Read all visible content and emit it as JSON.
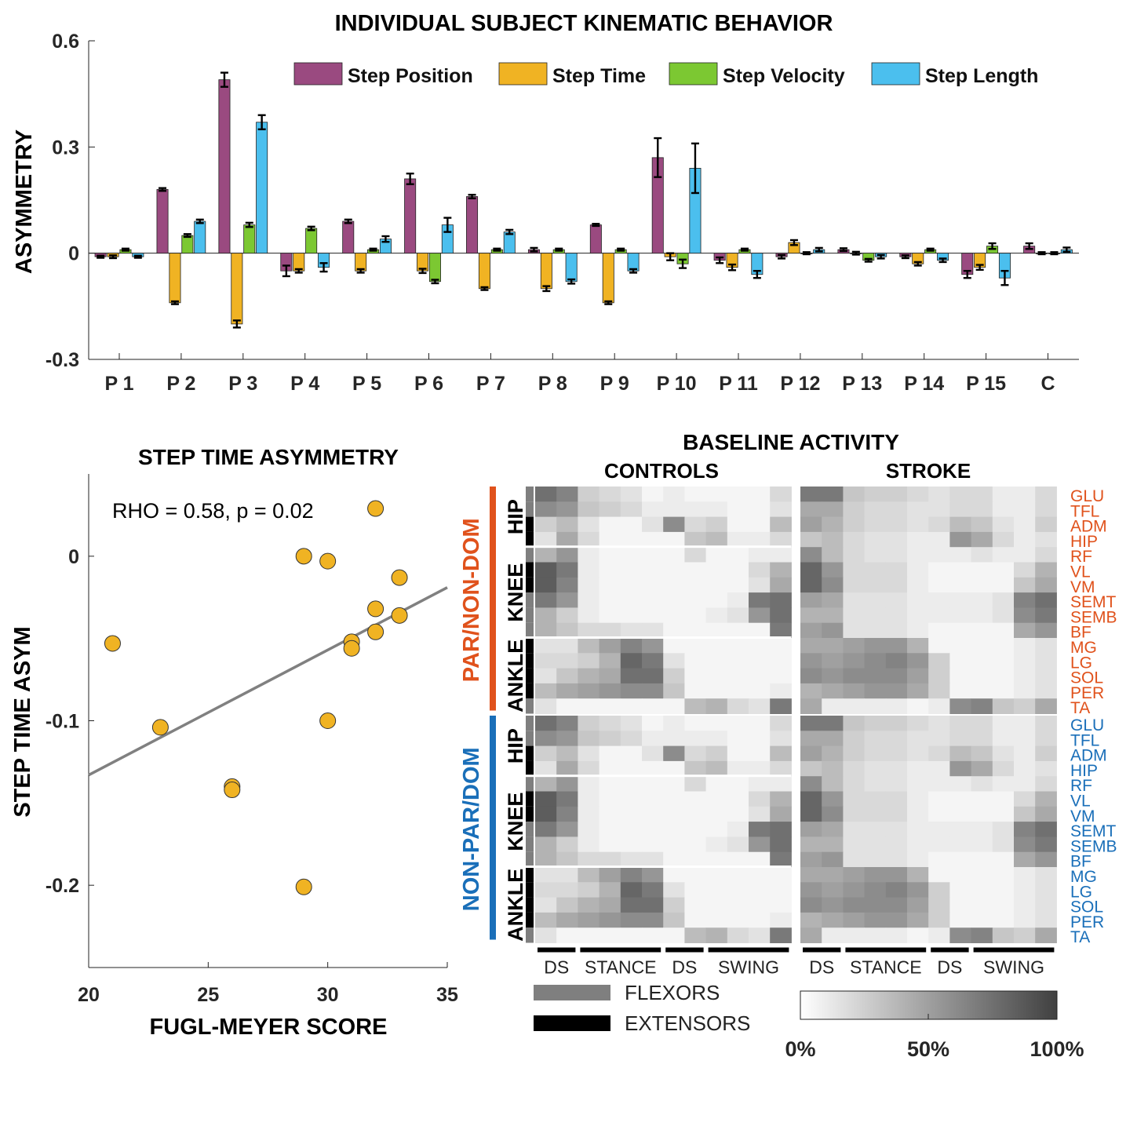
{
  "colors": {
    "step_position": "#9a4a80",
    "step_time": "#f0b323",
    "step_velocity": "#7cc832",
    "step_length": "#4bbfee",
    "paretic": "#e0521c",
    "nonparetic": "#1a6fb9",
    "flexor_bar": "#7f7f7f",
    "extensor_bar": "#000000",
    "fit_line": "#808080",
    "scatter_marker": "#f0b323"
  },
  "chart_data": [
    {
      "type": "bar",
      "title": "INDIVIDUAL SUBJECT KINEMATIC BEHAVIOR",
      "xlabel": "",
      "ylabel": "ASYMMETRY",
      "ylim": [
        -0.3,
        0.6
      ],
      "yticks": [
        "-0.3",
        "0",
        "0.3",
        "0.6"
      ],
      "categories": [
        "P 1",
        "P 2",
        "P 3",
        "P 4",
        "P 5",
        "P 6",
        "P 7",
        "P 8",
        "P 9",
        "P 10",
        "P 11",
        "P 12",
        "P 13",
        "P 14",
        "P 15",
        "C"
      ],
      "legend_placement": "top-right",
      "series": [
        {
          "name": "Step Position",
          "values": [
            -0.01,
            0.18,
            0.49,
            -0.05,
            0.09,
            0.21,
            0.16,
            0.01,
            0.08,
            0.27,
            -0.02,
            -0.01,
            0.01,
            -0.01,
            -0.06,
            0.02
          ],
          "errors": [
            0.003,
            0.004,
            0.02,
            0.015,
            0.005,
            0.015,
            0.005,
            0.005,
            0.003,
            0.055,
            0.008,
            0.005,
            0.004,
            0.004,
            0.01,
            0.008
          ]
        },
        {
          "name": "Step Time",
          "values": [
            -0.01,
            -0.14,
            -0.2,
            -0.05,
            -0.05,
            -0.05,
            -0.1,
            -0.1,
            -0.14,
            -0.01,
            -0.04,
            0.03,
            0.0,
            -0.03,
            -0.04,
            0.0
          ],
          "errors": [
            0.004,
            0.004,
            0.01,
            0.005,
            0.005,
            0.006,
            0.004,
            0.007,
            0.004,
            0.01,
            0.008,
            0.007,
            0.004,
            0.005,
            0.007,
            0.003
          ]
        },
        {
          "name": "Step Velocity",
          "values": [
            0.01,
            0.05,
            0.08,
            0.07,
            0.01,
            -0.08,
            0.01,
            0.01,
            0.01,
            -0.03,
            0.01,
            0.0,
            -0.02,
            0.01,
            0.02,
            0.0
          ],
          "errors": [
            0.003,
            0.004,
            0.006,
            0.005,
            0.003,
            0.005,
            0.003,
            0.003,
            0.003,
            0.012,
            0.003,
            0.003,
            0.004,
            0.003,
            0.008,
            0.003
          ]
        },
        {
          "name": "Step Length",
          "values": [
            -0.01,
            0.09,
            0.37,
            -0.04,
            0.04,
            0.08,
            0.06,
            -0.08,
            -0.05,
            0.24,
            -0.06,
            0.01,
            -0.01,
            -0.02,
            -0.07,
            0.01
          ],
          "errors": [
            0.003,
            0.005,
            0.02,
            0.012,
            0.008,
            0.02,
            0.006,
            0.006,
            0.005,
            0.07,
            0.01,
            0.005,
            0.005,
            0.005,
            0.02,
            0.006
          ]
        }
      ]
    },
    {
      "type": "scatter",
      "title": "STEP TIME ASYMMETRY",
      "xlabel": "FUGL-MEYER SCORE",
      "ylabel": "STEP TIME ASYM",
      "annotation": "RHO = 0.58, p = 0.02",
      "xlim": [
        20,
        35
      ],
      "ylim": [
        -0.25,
        0.05
      ],
      "xticks": [
        "20",
        "25",
        "30",
        "35"
      ],
      "yticks": [
        "0",
        "-0.1",
        "-0.2"
      ],
      "x": [
        21,
        23,
        26,
        26,
        29,
        29,
        30,
        30,
        31,
        31,
        32,
        32,
        32,
        33,
        33
      ],
      "y": [
        -0.053,
        -0.104,
        -0.14,
        -0.142,
        0.0,
        -0.201,
        -0.003,
        -0.1,
        -0.052,
        -0.056,
        0.029,
        -0.032,
        -0.046,
        -0.013,
        -0.036
      ],
      "fit_line": {
        "x": [
          20,
          35
        ],
        "y": [
          -0.133,
          -0.019
        ]
      }
    },
    {
      "type": "heatmap",
      "title": "BASELINE ACTIVITY",
      "panels": [
        "CONTROLS",
        "STROKE"
      ],
      "muscles": [
        "GLU",
        "TFL",
        "ADM",
        "HIP",
        "RF",
        "VL",
        "VM",
        "SEMT",
        "SEMB",
        "BF",
        "MG",
        "LG",
        "SOL",
        "PER",
        "TA"
      ],
      "phases": [
        "DS",
        "STANCE",
        "DS",
        "SWING"
      ],
      "groups": [
        "PAR/NON-DOM",
        "NON-PAR/DOM"
      ],
      "joints": [
        "HIP",
        "KNEE",
        "ANKLE"
      ],
      "colorbar_ticks": [
        "0%",
        "50%",
        "100%"
      ],
      "legend": {
        "flexors": "FLEXORS",
        "extensors": "EXTENSORS"
      },
      "controls_values": [
        [
          75,
          65,
          25,
          20,
          15,
          5,
          10,
          5,
          5,
          5,
          5,
          20
        ],
        [
          60,
          55,
          30,
          25,
          20,
          10,
          10,
          10,
          10,
          5,
          5,
          15
        ],
        [
          25,
          35,
          15,
          5,
          5,
          15,
          60,
          20,
          25,
          5,
          5,
          35
        ],
        [
          15,
          45,
          20,
          5,
          5,
          5,
          5,
          30,
          35,
          10,
          10,
          20
        ],
        [
          40,
          55,
          10,
          5,
          5,
          5,
          5,
          20,
          5,
          5,
          10,
          10
        ],
        [
          85,
          70,
          10,
          5,
          5,
          5,
          5,
          5,
          5,
          5,
          20,
          40
        ],
        [
          85,
          65,
          10,
          5,
          5,
          5,
          5,
          5,
          5,
          5,
          15,
          45
        ],
        [
          70,
          55,
          10,
          5,
          5,
          5,
          5,
          5,
          5,
          10,
          70,
          75
        ],
        [
          40,
          25,
          10,
          5,
          5,
          5,
          5,
          5,
          10,
          15,
          55,
          75
        ],
        [
          40,
          30,
          20,
          20,
          15,
          15,
          5,
          5,
          5,
          5,
          5,
          70
        ],
        [
          15,
          15,
          35,
          50,
          65,
          55,
          5,
          5,
          5,
          5,
          5,
          5
        ],
        [
          20,
          20,
          25,
          40,
          80,
          70,
          15,
          5,
          5,
          5,
          5,
          5
        ],
        [
          15,
          30,
          40,
          45,
          75,
          75,
          25,
          5,
          5,
          5,
          5,
          5
        ],
        [
          35,
          45,
          50,
          55,
          60,
          60,
          30,
          5,
          5,
          5,
          5,
          10
        ],
        [
          15,
          5,
          5,
          5,
          5,
          5,
          5,
          35,
          40,
          20,
          15,
          70
        ]
      ],
      "stroke_values": [
        [
          70,
          70,
          30,
          25,
          25,
          20,
          15,
          20,
          20,
          10,
          10,
          20
        ],
        [
          45,
          45,
          25,
          20,
          20,
          15,
          15,
          20,
          20,
          10,
          10,
          20
        ],
        [
          50,
          40,
          25,
          20,
          20,
          15,
          20,
          35,
          30,
          15,
          10,
          25
        ],
        [
          30,
          35,
          20,
          15,
          15,
          10,
          10,
          55,
          45,
          20,
          10,
          15
        ],
        [
          60,
          35,
          20,
          15,
          15,
          10,
          10,
          10,
          15,
          10,
          10,
          20
        ],
        [
          80,
          55,
          20,
          20,
          20,
          10,
          5,
          5,
          5,
          5,
          20,
          40
        ],
        [
          80,
          60,
          20,
          20,
          20,
          10,
          5,
          5,
          5,
          5,
          30,
          45
        ],
        [
          50,
          45,
          15,
          15,
          15,
          10,
          10,
          10,
          10,
          15,
          65,
          75
        ],
        [
          40,
          40,
          15,
          15,
          15,
          10,
          10,
          10,
          10,
          15,
          60,
          70
        ],
        [
          50,
          55,
          15,
          15,
          15,
          10,
          5,
          5,
          5,
          5,
          45,
          55
        ],
        [
          45,
          45,
          50,
          55,
          55,
          40,
          5,
          5,
          5,
          5,
          10,
          15
        ],
        [
          55,
          50,
          55,
          60,
          65,
          55,
          25,
          5,
          5,
          5,
          10,
          15
        ],
        [
          60,
          55,
          60,
          60,
          60,
          50,
          25,
          5,
          5,
          5,
          10,
          15
        ],
        [
          40,
          45,
          50,
          55,
          55,
          45,
          25,
          5,
          5,
          5,
          10,
          15
        ],
        [
          45,
          10,
          10,
          10,
          10,
          5,
          10,
          60,
          65,
          30,
          25,
          45
        ]
      ]
    }
  ]
}
